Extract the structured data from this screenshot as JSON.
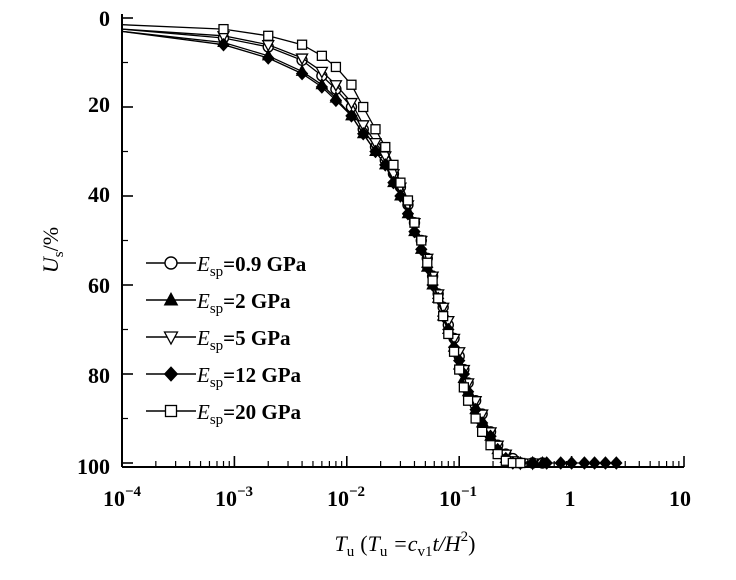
{
  "chart_data": {
    "type": "line",
    "title": "",
    "xlabel": {
      "symbol": "T",
      "symbol_sub": "u",
      "paren_open": "(",
      "eq_symbol": "T",
      "eq_sub": "u",
      "eq_mid": " =c",
      "eq_sub2": "v1",
      "eq_tail": "t/H",
      "eq_sup": "2",
      "paren_close": ")"
    },
    "ylabel": {
      "symbol": "U",
      "sub": "s",
      "unit": "/%"
    },
    "xscale": "log",
    "xlim": [
      0.0001,
      10
    ],
    "ylim": [
      0,
      100
    ],
    "y_inverted": true,
    "x_ticks": [
      {
        "base": "10",
        "exp": "−4"
      },
      {
        "base": "10",
        "exp": "−3"
      },
      {
        "base": "10",
        "exp": "−2"
      },
      {
        "base": "10",
        "exp": "−1"
      },
      {
        "base": "1",
        "exp": ""
      },
      {
        "base": "10",
        "exp": ""
      }
    ],
    "y_ticks": [
      "0",
      "20",
      "40",
      "60",
      "80",
      "100"
    ],
    "legend_position": "left-middle",
    "series": [
      {
        "name": "Esp=0.9 GPa",
        "symbol_text": "E",
        "sub": "sp",
        "value_text": "=0.9 GPa",
        "marker": "circle-open",
        "x": [
          0.0001,
          0.0008,
          0.002,
          0.004,
          0.006,
          0.008,
          0.011,
          0.014,
          0.018,
          0.022,
          0.026,
          0.03,
          0.035,
          0.04,
          0.046,
          0.052,
          0.058,
          0.065,
          0.072,
          0.08,
          0.09,
          0.1,
          0.11,
          0.12,
          0.14,
          0.16,
          0.19,
          0.22,
          0.26,
          0.3,
          0.35,
          0.45,
          0.55
        ],
        "y": [
          2.5,
          4.5,
          6.5,
          9.5,
          13,
          16,
          20,
          25,
          29,
          32,
          35,
          38,
          42,
          46,
          50,
          54,
          58,
          62,
          65,
          69,
          72,
          76,
          79,
          82,
          86,
          89,
          93,
          96,
          98,
          99,
          100,
          100,
          100
        ]
      },
      {
        "name": "Esp=2 GPa",
        "symbol_text": "E",
        "sub": "sp",
        "value_text": "=2 GPa",
        "marker": "triangle-filled",
        "x": [
          0.0001,
          0.0008,
          0.002,
          0.004,
          0.006,
          0.008,
          0.011,
          0.014,
          0.018,
          0.022,
          0.026,
          0.03,
          0.035,
          0.04,
          0.046,
          0.052,
          0.058,
          0.065,
          0.072,
          0.08,
          0.09,
          0.1,
          0.11,
          0.12,
          0.14,
          0.16,
          0.19,
          0.22,
          0.26,
          0.3,
          0.35,
          0.45,
          0.55
        ],
        "y": [
          3,
          5.5,
          8.5,
          12,
          15,
          18,
          22,
          26,
          30,
          33,
          37,
          40,
          44,
          48,
          52,
          56,
          60,
          63,
          67,
          70,
          74,
          78,
          81,
          84,
          88,
          91,
          94,
          97,
          99,
          100,
          100,
          100,
          100
        ]
      },
      {
        "name": "Esp=5 GPa",
        "symbol_text": "E",
        "sub": "sp",
        "value_text": "=5 GPa",
        "marker": "triangle-down-open",
        "x": [
          0.0001,
          0.0008,
          0.002,
          0.004,
          0.006,
          0.008,
          0.011,
          0.014,
          0.018,
          0.022,
          0.026,
          0.03,
          0.035,
          0.04,
          0.046,
          0.052,
          0.058,
          0.065,
          0.072,
          0.08,
          0.09,
          0.1,
          0.11,
          0.12,
          0.14,
          0.16,
          0.19,
          0.22,
          0.26,
          0.3,
          0.35,
          0.45
        ],
        "y": [
          2.5,
          4,
          6,
          9,
          12,
          15,
          19,
          24,
          28,
          31,
          35,
          38,
          42,
          46,
          50,
          54,
          58,
          62,
          65,
          68,
          72,
          75,
          79,
          82,
          86,
          89,
          93,
          96,
          98,
          99.5,
          100,
          100
        ]
      },
      {
        "name": "Esp=12 GPa",
        "symbol_text": "E",
        "sub": "sp",
        "value_text": "=12 GPa",
        "marker": "diamond-filled",
        "x": [
          0.0001,
          0.0008,
          0.002,
          0.004,
          0.006,
          0.008,
          0.011,
          0.014,
          0.018,
          0.022,
          0.026,
          0.03,
          0.035,
          0.04,
          0.046,
          0.052,
          0.058,
          0.065,
          0.072,
          0.08,
          0.09,
          0.1,
          0.11,
          0.12,
          0.14,
          0.16,
          0.19,
          0.22,
          0.26,
          0.3,
          0.35,
          0.45,
          0.6,
          0.8,
          1.0,
          1.3,
          1.6,
          2.0,
          2.5
        ],
        "y": [
          3,
          6,
          9,
          12.5,
          15.5,
          18.5,
          22,
          26,
          30,
          33,
          37,
          40,
          44,
          48,
          52,
          56,
          60,
          63,
          67,
          70,
          74,
          77,
          80,
          84,
          88,
          91,
          94,
          97,
          99,
          100,
          100,
          100,
          100,
          100,
          100,
          100,
          100,
          100,
          100
        ]
      },
      {
        "name": "Esp=20 GPa",
        "symbol_text": "E",
        "sub": "sp",
        "value_text": "=20 GPa",
        "marker": "square-open",
        "x": [
          0.0001,
          0.0008,
          0.002,
          0.004,
          0.006,
          0.008,
          0.011,
          0.014,
          0.018,
          0.022,
          0.026,
          0.03,
          0.035,
          0.04,
          0.046,
          0.052,
          0.058,
          0.065,
          0.072,
          0.08,
          0.09,
          0.1,
          0.11,
          0.12,
          0.14,
          0.16,
          0.19,
          0.22,
          0.26,
          0.3,
          0.35
        ],
        "y": [
          1.5,
          2.5,
          4,
          6,
          8.5,
          11,
          15,
          20,
          25,
          29,
          33,
          37,
          41,
          46,
          50,
          55,
          59,
          63,
          67,
          71,
          75,
          79,
          83,
          86,
          90,
          93,
          96,
          98,
          99.5,
          100,
          100
        ]
      }
    ]
  }
}
